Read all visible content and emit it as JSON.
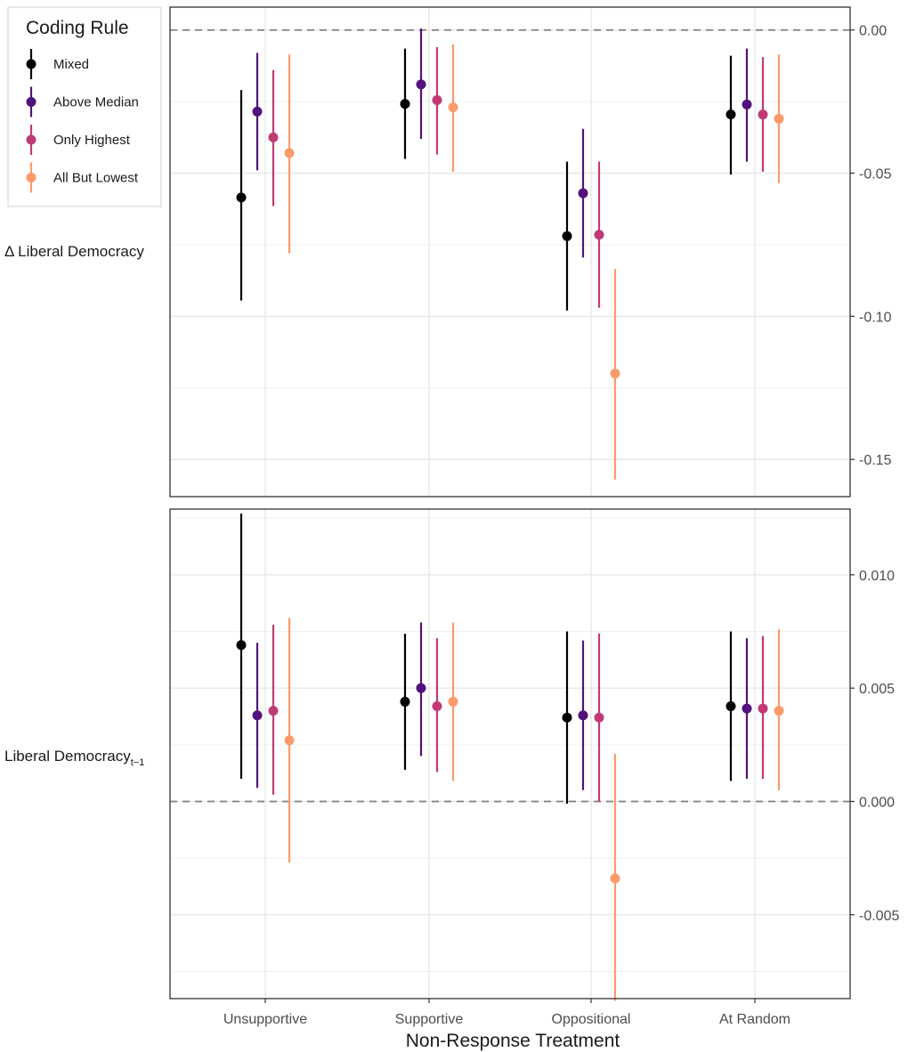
{
  "chart_data": {
    "type": "scatter",
    "subtype": "point-range",
    "xlabel": "Non-Response Treatment",
    "categories": [
      "Unsupportive",
      "Supportive",
      "Oppositional",
      "At Random"
    ],
    "legend": {
      "title": "Coding Rule",
      "placement": "top-left",
      "entries": [
        {
          "name": "Mixed",
          "color": "#000000"
        },
        {
          "name": "Above Median",
          "color": "#51127C"
        },
        {
          "name": "Only Highest",
          "color": "#C03A76"
        },
        {
          "name": "All But Lowest",
          "color": "#FD9A6A"
        }
      ]
    },
    "reference_line": 0,
    "grid": true,
    "y_axis_position": "right",
    "panels": [
      {
        "label": "Δ Liberal Democracy",
        "ylim": [
          -0.163,
          0.008
        ],
        "yticks": [
          0,
          -0.05,
          -0.1,
          -0.15
        ],
        "ytick_labels": [
          "0.00",
          "-0.05",
          "-0.10",
          "-0.15"
        ],
        "series": [
          {
            "name": "Mixed",
            "values": [
              {
                "estimate": -0.0585,
                "lower": -0.0945,
                "upper": -0.021
              },
              {
                "estimate": -0.0258,
                "lower": -0.045,
                "upper": -0.0065
              },
              {
                "estimate": -0.072,
                "lower": -0.098,
                "upper": -0.046
              },
              {
                "estimate": -0.0295,
                "lower": -0.0505,
                "upper": -0.009
              }
            ]
          },
          {
            "name": "Above Median",
            "values": [
              {
                "estimate": -0.0285,
                "lower": -0.049,
                "upper": -0.008
              },
              {
                "estimate": -0.019,
                "lower": -0.038,
                "upper": 0.0005
              },
              {
                "estimate": -0.057,
                "lower": -0.0795,
                "upper": -0.0345
              },
              {
                "estimate": -0.026,
                "lower": -0.046,
                "upper": -0.0065
              }
            ]
          },
          {
            "name": "Only Highest",
            "values": [
              {
                "estimate": -0.0375,
                "lower": -0.0615,
                "upper": -0.014
              },
              {
                "estimate": -0.0245,
                "lower": -0.0435,
                "upper": -0.006
              },
              {
                "estimate": -0.0715,
                "lower": -0.097,
                "upper": -0.046
              },
              {
                "estimate": -0.0295,
                "lower": -0.0495,
                "upper": -0.0095
              }
            ]
          },
          {
            "name": "All But Lowest",
            "values": [
              {
                "estimate": -0.043,
                "lower": -0.078,
                "upper": -0.0085
              },
              {
                "estimate": -0.027,
                "lower": -0.0495,
                "upper": -0.005
              },
              {
                "estimate": -0.12,
                "lower": -0.157,
                "upper": -0.0835
              },
              {
                "estimate": -0.031,
                "lower": -0.0535,
                "upper": -0.0085
              }
            ]
          }
        ]
      },
      {
        "label": "Liberal Democracy",
        "label_subscript": "t−1",
        "ylim": [
          -0.0087,
          0.0129
        ],
        "yticks": [
          0.01,
          0.005,
          0,
          -0.005
        ],
        "ytick_labels": [
          "0.010",
          "0.005",
          "0.000",
          "-0.005"
        ],
        "series": [
          {
            "name": "Mixed",
            "values": [
              {
                "estimate": 0.0069,
                "lower": 0.001,
                "upper": 0.0127
              },
              {
                "estimate": 0.0044,
                "lower": 0.0014,
                "upper": 0.0074
              },
              {
                "estimate": 0.0037,
                "lower": -0.0001,
                "upper": 0.0075
              },
              {
                "estimate": 0.0042,
                "lower": 0.0009,
                "upper": 0.0075
              }
            ]
          },
          {
            "name": "Above Median",
            "values": [
              {
                "estimate": 0.0038,
                "lower": 0.0006,
                "upper": 0.007
              },
              {
                "estimate": 0.005,
                "lower": 0.002,
                "upper": 0.0079
              },
              {
                "estimate": 0.0038,
                "lower": 0.0005,
                "upper": 0.0071
              },
              {
                "estimate": 0.0041,
                "lower": 0.001,
                "upper": 0.0072
              }
            ]
          },
          {
            "name": "Only Highest",
            "values": [
              {
                "estimate": 0.004,
                "lower": 0.0003,
                "upper": 0.0078
              },
              {
                "estimate": 0.0042,
                "lower": 0.0013,
                "upper": 0.0072
              },
              {
                "estimate": 0.0037,
                "lower": 0.0,
                "upper": 0.0074
              },
              {
                "estimate": 0.0041,
                "lower": 0.001,
                "upper": 0.0073
              }
            ]
          },
          {
            "name": "All But Lowest",
            "values": [
              {
                "estimate": 0.0027,
                "lower": -0.0027,
                "upper": 0.0081
              },
              {
                "estimate": 0.0044,
                "lower": 0.0009,
                "upper": 0.0079
              },
              {
                "estimate": -0.0034,
                "lower": -0.0088,
                "upper": 0.0021
              },
              {
                "estimate": 0.004,
                "lower": 0.0005,
                "upper": 0.0076
              }
            ]
          }
        ]
      }
    ]
  }
}
